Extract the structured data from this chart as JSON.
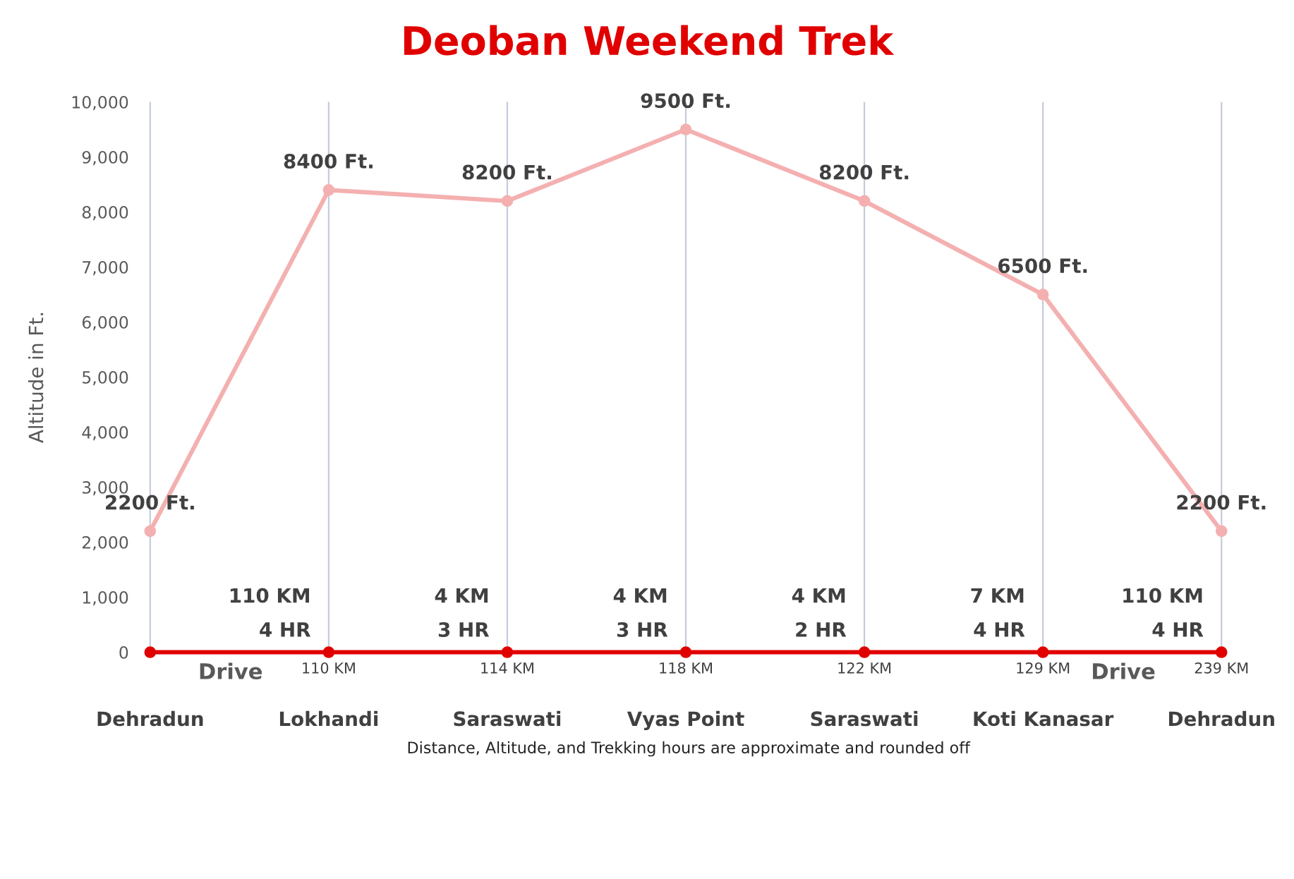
{
  "chart_data": {
    "type": "line",
    "title": "Deoban Weekend Trek",
    "ylabel": "Altitude in Ft.",
    "categories": [
      "Dehradun",
      "Lokhandi",
      "Saraswati",
      "Vyas Point",
      "Saraswati",
      "Koti Kanasar",
      "Dehradun"
    ],
    "series": [
      {
        "color": "#f4b0b0",
        "values": [
          2200,
          8400,
          8200,
          9500,
          8200,
          6500,
          2200
        ],
        "value_labels": [
          "2200 Ft.",
          "8400 Ft.",
          "8200 Ft.",
          "9500 Ft.",
          "8200 Ft.",
          "6500 Ft.",
          "2200 Ft."
        ]
      },
      {
        "color": "#e00000",
        "values": [
          0,
          0,
          0,
          0,
          0,
          0,
          0
        ]
      }
    ],
    "ylim": [
      0,
      10000
    ],
    "yticks": [
      0,
      {
        "value": 1000,
        "label": "1,000"
      },
      {
        "value": 2000,
        "label": "2,000"
      },
      {
        "value": 3000,
        "label": "3,000"
      },
      {
        "value": 4000,
        "label": "4,000"
      },
      {
        "value": 5000,
        "label": "5,000"
      },
      {
        "value": 6000,
        "label": "6,000"
      },
      {
        "value": 7000,
        "label": "7,000"
      },
      {
        "value": 8000,
        "label": "8,000"
      },
      {
        "value": 9000,
        "label": "9,000"
      },
      {
        "value": 10000,
        "label": "10,000"
      }
    ],
    "grid": "x",
    "marker": "circle",
    "line_style": "solid",
    "legend": false,
    "annotations": [
      "110 KM",
      "4 HR",
      "4 KM",
      "3 HR",
      "4 KM",
      "3 HR",
      "4 KM",
      "2 HR",
      "7 KM",
      "4 HR",
      "110 KM",
      "4 HR",
      "Drive",
      "Drive",
      "110 KM",
      "114 KM",
      "118 KM",
      "122 KM",
      "129 KM",
      "239 KM",
      "Distance, Altitude, and Trekking hours are approximate and rounded off"
    ]
  }
}
